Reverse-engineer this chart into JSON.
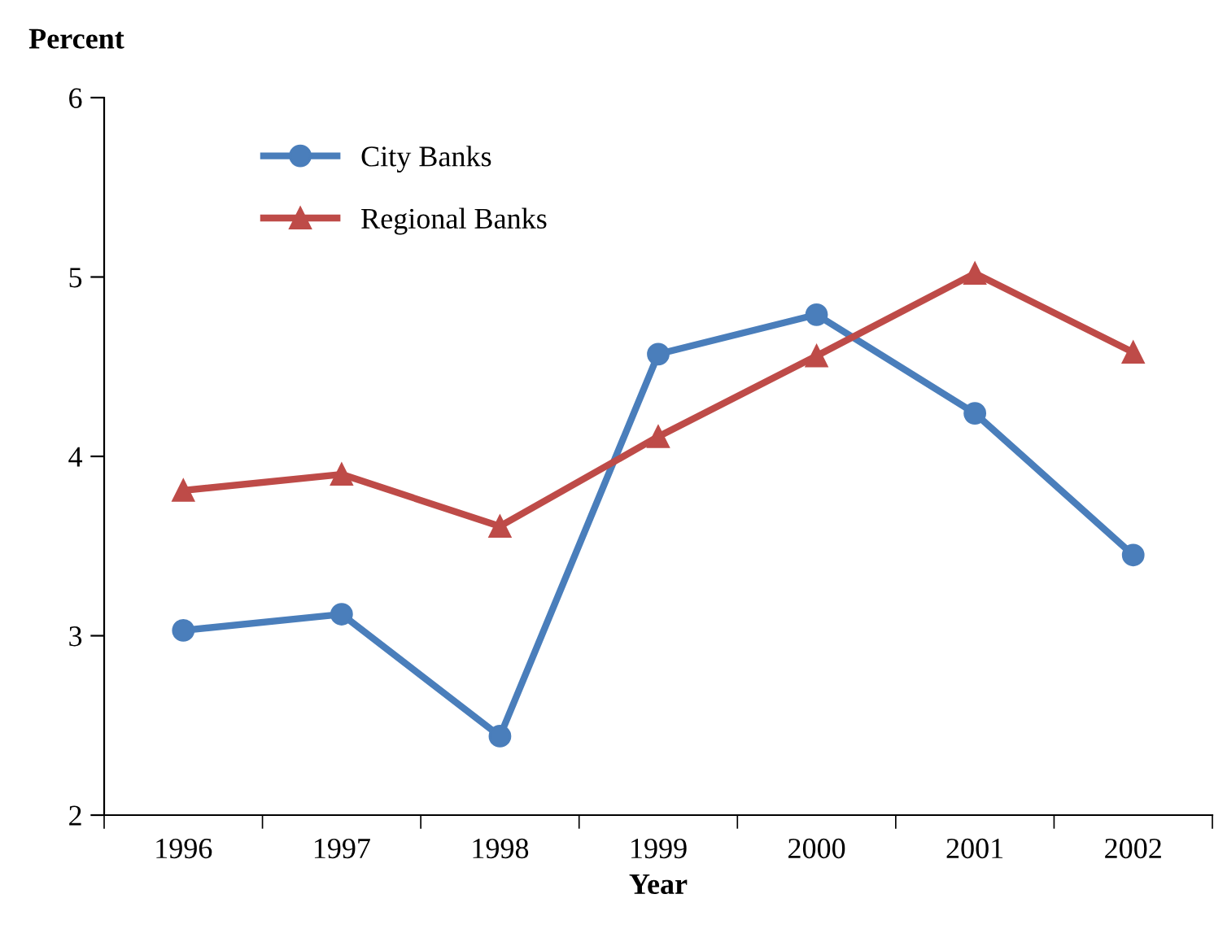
{
  "chart_data": {
    "type": "line",
    "ylabel": "Percent",
    "xlabel": "Year",
    "categories": [
      "1996",
      "1997",
      "1998",
      "1999",
      "2000",
      "2001",
      "2002"
    ],
    "series": [
      {
        "name": "City Banks",
        "color": "#4a7ebb",
        "marker": "circle",
        "values": [
          3.03,
          3.12,
          2.44,
          4.57,
          4.79,
          4.24,
          3.45
        ]
      },
      {
        "name": "Regional Banks",
        "color": "#be4b48",
        "marker": "triangle",
        "values": [
          3.81,
          3.9,
          3.61,
          4.11,
          4.56,
          5.02,
          4.58
        ]
      }
    ],
    "ylim": [
      2,
      6
    ],
    "yticks": [
      2,
      3,
      4,
      5,
      6
    ],
    "grid": false,
    "legend": "top left"
  }
}
